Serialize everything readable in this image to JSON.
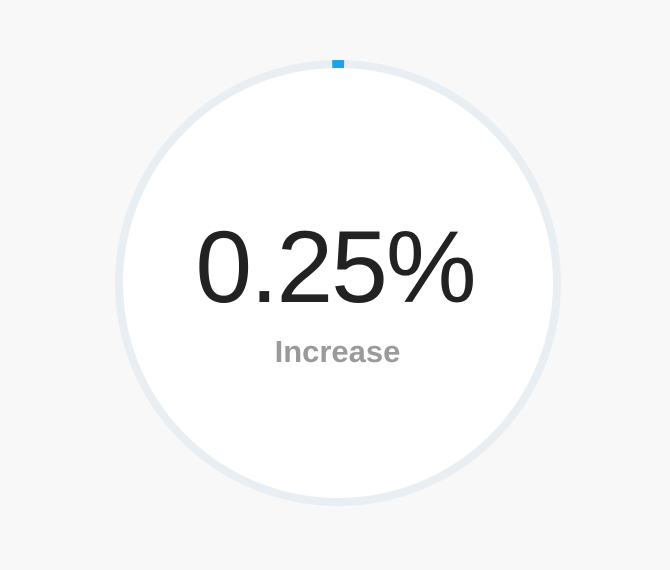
{
  "gauge": {
    "value_text": "0.25%",
    "label": "Increase",
    "progress_fraction": 0.0025
  },
  "colors": {
    "background": "#f8f8f8",
    "face": "#ffffff",
    "track": "#e8eef2",
    "progress": "#1ea1e6",
    "value_text": "#222222",
    "label_text": "#9a9a9a"
  }
}
